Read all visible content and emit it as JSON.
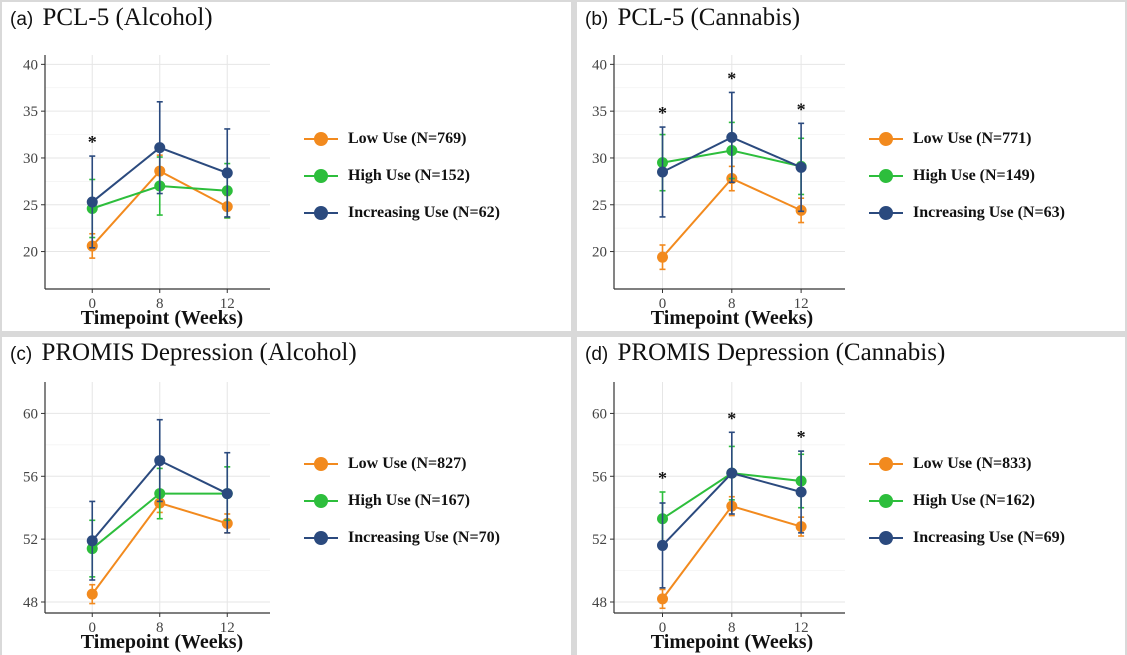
{
  "colors": {
    "low": "#F28A1E",
    "high": "#2DBE3C",
    "increasing": "#2B4A7E",
    "grid": "#E6E6E6",
    "axis": "#333333"
  },
  "chart_data": [
    {
      "type": "line",
      "panel_label": "(a)",
      "title": "PCL-5 (Alcohol)",
      "xlabel": "Timepoint (Weeks)",
      "ylabel": "",
      "x": [
        "0",
        "8",
        "12"
      ],
      "ylim": [
        16,
        41
      ],
      "yticks": [
        20,
        25,
        30,
        35,
        40
      ],
      "grid": true,
      "legend_position": "right",
      "significance": [
        "*",
        "",
        ""
      ],
      "series": [
        {
          "name": "Low Use (N=769)",
          "color_key": "low",
          "values": [
            20.6,
            28.6,
            24.8
          ],
          "lower": [
            19.3,
            26.9,
            23.6
          ],
          "upper": [
            21.9,
            30.3,
            26.0
          ]
        },
        {
          "name": "High Use (N=152)",
          "color_key": "high",
          "values": [
            24.6,
            27.0,
            26.5
          ],
          "lower": [
            21.5,
            23.9,
            23.6
          ],
          "upper": [
            27.7,
            30.1,
            29.4
          ]
        },
        {
          "name": "Increasing Use (N=62)",
          "color_key": "increasing",
          "values": [
            25.3,
            31.1,
            28.4
          ],
          "lower": [
            20.4,
            26.2,
            23.7
          ],
          "upper": [
            30.2,
            36.0,
            33.1
          ]
        }
      ]
    },
    {
      "type": "line",
      "panel_label": "(b)",
      "title": "PCL-5 (Cannabis)",
      "xlabel": "Timepoint (Weeks)",
      "ylabel": "",
      "x": [
        "0",
        "8",
        "12"
      ],
      "ylim": [
        16,
        41
      ],
      "yticks": [
        20,
        25,
        30,
        35,
        40
      ],
      "grid": true,
      "legend_position": "right",
      "significance": [
        "*",
        "*",
        "*"
      ],
      "series": [
        {
          "name": "Low Use (N=771)",
          "color_key": "low",
          "values": [
            19.4,
            27.8,
            24.4
          ],
          "lower": [
            18.1,
            26.5,
            23.1
          ],
          "upper": [
            20.7,
            29.1,
            25.7
          ]
        },
        {
          "name": "High Use (N=149)",
          "color_key": "high",
          "values": [
            29.5,
            30.8,
            29.1
          ],
          "lower": [
            26.5,
            27.8,
            26.1
          ],
          "upper": [
            32.5,
            33.8,
            32.1
          ]
        },
        {
          "name": "Increasing Use (N=63)",
          "color_key": "increasing",
          "values": [
            28.5,
            32.2,
            29.0
          ],
          "lower": [
            23.7,
            27.4,
            24.3
          ],
          "upper": [
            33.3,
            37.0,
            33.7
          ]
        }
      ]
    },
    {
      "type": "line",
      "panel_label": "(c)",
      "title": "PROMIS Depression (Alcohol)",
      "xlabel": "Timepoint (Weeks)",
      "ylabel": "",
      "x": [
        "0",
        "8",
        "12"
      ],
      "ylim": [
        47.3,
        62
      ],
      "yticks": [
        48,
        52,
        56,
        60
      ],
      "grid": true,
      "legend_position": "right",
      "significance": [
        "",
        "",
        ""
      ],
      "series": [
        {
          "name": "Low Use (N=827)",
          "color_key": "low",
          "values": [
            48.5,
            54.3,
            53.0
          ],
          "lower": [
            47.9,
            53.7,
            52.4
          ],
          "upper": [
            49.1,
            54.9,
            53.6
          ]
        },
        {
          "name": "High Use (N=167)",
          "color_key": "high",
          "values": [
            51.4,
            54.9,
            54.9
          ],
          "lower": [
            49.6,
            53.3,
            53.2
          ],
          "upper": [
            53.2,
            56.5,
            56.6
          ]
        },
        {
          "name": "Increasing Use (N=70)",
          "color_key": "increasing",
          "values": [
            51.9,
            57.0,
            54.9
          ],
          "lower": [
            49.4,
            54.4,
            52.4
          ],
          "upper": [
            54.4,
            59.6,
            57.5
          ]
        }
      ]
    },
    {
      "type": "line",
      "panel_label": "(d)",
      "title": "PROMIS Depression (Cannabis)",
      "xlabel": "Timepoint (Weeks)",
      "ylabel": "",
      "x": [
        "0",
        "8",
        "12"
      ],
      "ylim": [
        47.3,
        62
      ],
      "yticks": [
        48,
        52,
        56,
        60
      ],
      "grid": true,
      "legend_position": "right",
      "significance": [
        "*",
        "*",
        "*"
      ],
      "series": [
        {
          "name": "Low Use (N=833)",
          "color_key": "low",
          "values": [
            48.2,
            54.1,
            52.8
          ],
          "lower": [
            47.6,
            53.5,
            52.2
          ],
          "upper": [
            48.8,
            54.7,
            53.4
          ]
        },
        {
          "name": "High Use (N=162)",
          "color_key": "high",
          "values": [
            53.3,
            56.2,
            55.7
          ],
          "lower": [
            51.6,
            54.5,
            54.0
          ],
          "upper": [
            55.0,
            57.9,
            57.4
          ]
        },
        {
          "name": "Increasing Use (N=69)",
          "color_key": "increasing",
          "values": [
            51.6,
            56.2,
            55.0
          ],
          "lower": [
            48.9,
            53.6,
            52.4
          ],
          "upper": [
            54.3,
            58.8,
            57.6
          ]
        }
      ]
    }
  ]
}
